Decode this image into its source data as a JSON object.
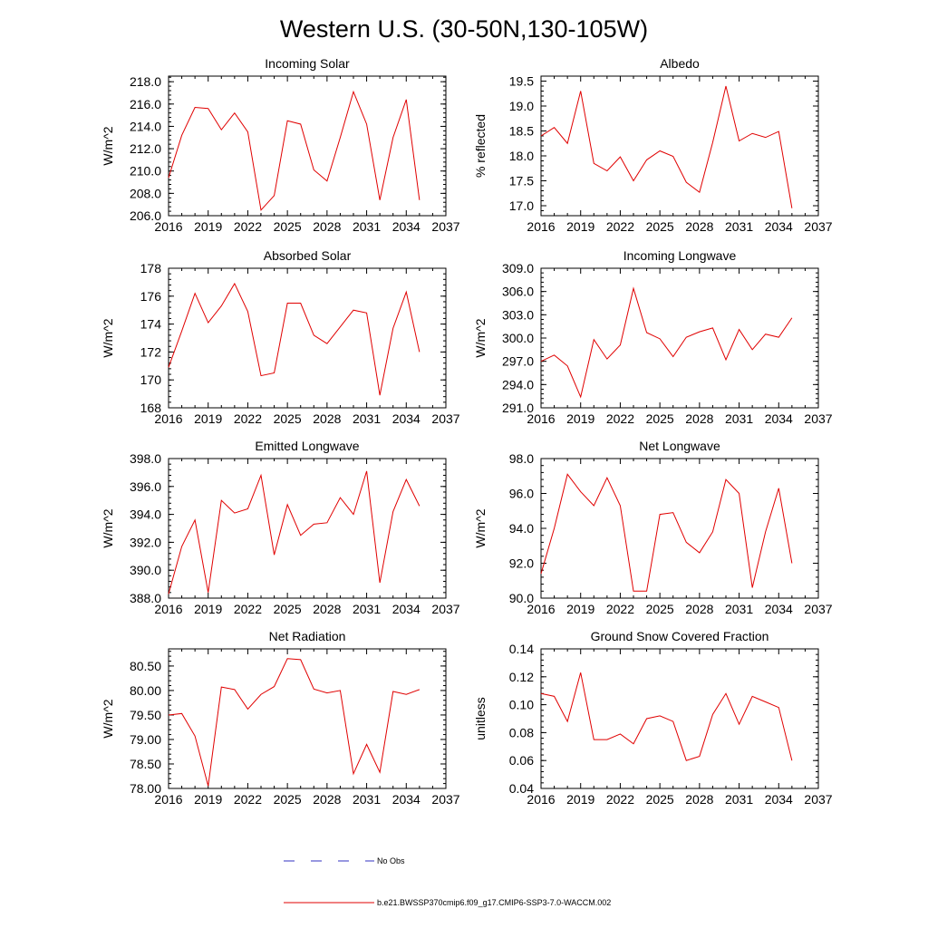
{
  "figure": {
    "title": "Western U.S. (30-50N,130-105W)"
  },
  "legend": {
    "items": [
      {
        "label": "No Obs",
        "color": "#3030c0",
        "style": "dashed"
      },
      {
        "label": "b.e21.BWSSP370cmip6.f09_g17.CMIP6-SSP3-7.0-WACCM.002",
        "color": "#e00000",
        "style": "solid"
      }
    ]
  },
  "chart_data": [
    {
      "type": "line",
      "title": "Incoming Solar",
      "ylabel": "W/m^2",
      "xlim": [
        2016,
        2037
      ],
      "ylim": [
        206,
        218.5
      ],
      "xticks": [
        2016,
        2019,
        2022,
        2025,
        2028,
        2031,
        2034,
        2037
      ],
      "xtick_labels": [
        "2016",
        "2019",
        "2022",
        "2025",
        "2028",
        "2031",
        "2034",
        "2037"
      ],
      "yticks": [
        206,
        208,
        210,
        212,
        214,
        216,
        218
      ],
      "ytick_labels": [
        "206.0",
        "208.0",
        "210.0",
        "212.0",
        "214.0",
        "216.0",
        "218.0"
      ],
      "series": [
        {
          "name": "b.e21.BWSSP370cmip6.f09_g17.CMIP6-SSP3-7.0-WACCM.002",
          "color": "#e00000",
          "x": [
            2016,
            2017,
            2018,
            2019,
            2020,
            2021,
            2022,
            2023,
            2024,
            2025,
            2026,
            2027,
            2028,
            2029,
            2030,
            2031,
            2032,
            2033,
            2034,
            2035
          ],
          "y": [
            209.4,
            213.2,
            215.7,
            215.6,
            213.7,
            215.2,
            213.5,
            206.5,
            207.8,
            214.5,
            214.2,
            210.1,
            209.1,
            213.0,
            217.1,
            214.2,
            207.4,
            213.0,
            216.4,
            207.4
          ]
        }
      ]
    },
    {
      "type": "line",
      "title": "Albedo",
      "ylabel": "% reflected",
      "xlim": [
        2016,
        2037
      ],
      "ylim": [
        16.8,
        19.6
      ],
      "xticks": [
        2016,
        2019,
        2022,
        2025,
        2028,
        2031,
        2034,
        2037
      ],
      "xtick_labels": [
        "2016",
        "2019",
        "2022",
        "2025",
        "2028",
        "2031",
        "2034",
        "2037"
      ],
      "yticks": [
        17.0,
        17.5,
        18.0,
        18.5,
        19.0,
        19.5
      ],
      "ytick_labels": [
        "17.0",
        "17.5",
        "18.0",
        "18.5",
        "19.0",
        "19.5"
      ],
      "series": [
        {
          "name": "b.e21.BWSSP370cmip6.f09_g17.CMIP6-SSP3-7.0-WACCM.002",
          "color": "#e00000",
          "x": [
            2016,
            2017,
            2018,
            2019,
            2020,
            2021,
            2022,
            2023,
            2024,
            2025,
            2026,
            2027,
            2028,
            2029,
            2030,
            2031,
            2032,
            2033,
            2034,
            2035
          ],
          "y": [
            18.4,
            18.57,
            18.25,
            19.3,
            17.85,
            17.7,
            17.98,
            17.5,
            17.92,
            18.1,
            17.99,
            17.47,
            17.27,
            18.27,
            19.4,
            18.3,
            18.45,
            18.37,
            18.49,
            16.95
          ]
        }
      ]
    },
    {
      "type": "line",
      "title": "Absorbed Solar",
      "ylabel": "W/m^2",
      "xlim": [
        2016,
        2037
      ],
      "ylim": [
        168,
        178
      ],
      "xticks": [
        2016,
        2019,
        2022,
        2025,
        2028,
        2031,
        2034,
        2037
      ],
      "xtick_labels": [
        "2016",
        "2019",
        "2022",
        "2025",
        "2028",
        "2031",
        "2034",
        "2037"
      ],
      "yticks": [
        168,
        170,
        172,
        174,
        176,
        178
      ],
      "ytick_labels": [
        "168",
        "170",
        "172",
        "174",
        "176",
        "178"
      ],
      "series": [
        {
          "name": "b.e21.BWSSP370cmip6.f09_g17.CMIP6-SSP3-7.0-WACCM.002",
          "color": "#e00000",
          "x": [
            2016,
            2017,
            2018,
            2019,
            2020,
            2021,
            2022,
            2023,
            2024,
            2025,
            2026,
            2027,
            2028,
            2029,
            2030,
            2031,
            2032,
            2033,
            2034,
            2035
          ],
          "y": [
            170.9,
            173.5,
            176.2,
            174.1,
            175.3,
            176.9,
            174.9,
            170.3,
            170.5,
            175.5,
            175.5,
            173.2,
            172.6,
            173.8,
            175.0,
            174.8,
            168.9,
            173.7,
            176.3,
            172.0
          ]
        }
      ]
    },
    {
      "type": "line",
      "title": "Incoming Longwave",
      "ylabel": "W/m^2",
      "xlim": [
        2016,
        2037
      ],
      "ylim": [
        291,
        309
      ],
      "xticks": [
        2016,
        2019,
        2022,
        2025,
        2028,
        2031,
        2034,
        2037
      ],
      "xtick_labels": [
        "2016",
        "2019",
        "2022",
        "2025",
        "2028",
        "2031",
        "2034",
        "2037"
      ],
      "yticks": [
        291,
        294,
        297,
        300,
        303,
        306,
        309
      ],
      "ytick_labels": [
        "291.0",
        "294.0",
        "297.0",
        "300.0",
        "303.0",
        "306.0",
        "309.0"
      ],
      "series": [
        {
          "name": "b.e21.BWSSP370cmip6.f09_g17.CMIP6-SSP3-7.0-WACCM.002",
          "color": "#e00000",
          "x": [
            2016,
            2017,
            2018,
            2019,
            2020,
            2021,
            2022,
            2023,
            2024,
            2025,
            2026,
            2027,
            2028,
            2029,
            2030,
            2031,
            2032,
            2033,
            2034,
            2035
          ],
          "y": [
            297.0,
            297.8,
            296.4,
            292.4,
            299.8,
            297.3,
            299.1,
            306.4,
            300.7,
            299.9,
            297.6,
            300.1,
            300.8,
            301.3,
            297.2,
            301.1,
            298.5,
            300.5,
            300.1,
            302.6
          ]
        }
      ]
    },
    {
      "type": "line",
      "title": "Emitted Longwave",
      "ylabel": "W/m^2",
      "xlim": [
        2016,
        2037
      ],
      "ylim": [
        388,
        398
      ],
      "xticks": [
        2016,
        2019,
        2022,
        2025,
        2028,
        2031,
        2034,
        2037
      ],
      "xtick_labels": [
        "2016",
        "2019",
        "2022",
        "2025",
        "2028",
        "2031",
        "2034",
        "2037"
      ],
      "yticks": [
        388,
        390,
        392,
        394,
        396,
        398
      ],
      "ytick_labels": [
        "388.0",
        "390.0",
        "392.0",
        "394.0",
        "396.0",
        "398.0"
      ],
      "series": [
        {
          "name": "b.e21.BWSSP370cmip6.f09_g17.CMIP6-SSP3-7.0-WACCM.002",
          "color": "#e00000",
          "x": [
            2016,
            2017,
            2018,
            2019,
            2020,
            2021,
            2022,
            2023,
            2024,
            2025,
            2026,
            2027,
            2028,
            2029,
            2030,
            2031,
            2032,
            2033,
            2034,
            2035
          ],
          "y": [
            388.3,
            391.7,
            393.6,
            388.4,
            395.0,
            394.1,
            394.4,
            396.8,
            391.1,
            394.7,
            392.5,
            393.3,
            393.4,
            395.2,
            394.0,
            397.1,
            389.1,
            394.2,
            396.5,
            394.6
          ]
        }
      ]
    },
    {
      "type": "line",
      "title": "Net Longwave",
      "ylabel": "W/m^2",
      "xlim": [
        2016,
        2037
      ],
      "ylim": [
        90,
        98
      ],
      "xticks": [
        2016,
        2019,
        2022,
        2025,
        2028,
        2031,
        2034,
        2037
      ],
      "xtick_labels": [
        "2016",
        "2019",
        "2022",
        "2025",
        "2028",
        "2031",
        "2034",
        "2037"
      ],
      "yticks": [
        90,
        92,
        94,
        96,
        98
      ],
      "ytick_labels": [
        "90.0",
        "92.0",
        "94.0",
        "96.0",
        "98.0"
      ],
      "series": [
        {
          "name": "b.e21.BWSSP370cmip6.f09_g17.CMIP6-SSP3-7.0-WACCM.002",
          "color": "#e00000",
          "x": [
            2016,
            2017,
            2018,
            2019,
            2020,
            2021,
            2022,
            2023,
            2024,
            2025,
            2026,
            2027,
            2028,
            2029,
            2030,
            2031,
            2032,
            2033,
            2034,
            2035
          ],
          "y": [
            91.4,
            94.0,
            97.1,
            96.1,
            95.3,
            96.9,
            95.3,
            90.4,
            90.4,
            94.8,
            94.9,
            93.2,
            92.6,
            93.8,
            96.8,
            96.0,
            90.6,
            93.8,
            96.3,
            92.0
          ]
        }
      ]
    },
    {
      "type": "line",
      "title": "Net Radiation",
      "ylabel": "W/m^2",
      "xlim": [
        2016,
        2037
      ],
      "ylim": [
        78,
        80.85
      ],
      "xticks": [
        2016,
        2019,
        2022,
        2025,
        2028,
        2031,
        2034,
        2037
      ],
      "xtick_labels": [
        "2016",
        "2019",
        "2022",
        "2025",
        "2028",
        "2031",
        "2034",
        "2037"
      ],
      "yticks": [
        78.0,
        78.5,
        79.0,
        79.5,
        80.0,
        80.5
      ],
      "ytick_labels": [
        "78.00",
        "78.50",
        "79.00",
        "79.50",
        "80.00",
        "80.50"
      ],
      "series": [
        {
          "name": "b.e21.BWSSP370cmip6.f09_g17.CMIP6-SSP3-7.0-WACCM.002",
          "color": "#e00000",
          "x": [
            2016,
            2017,
            2018,
            2019,
            2020,
            2021,
            2022,
            2023,
            2024,
            2025,
            2026,
            2027,
            2028,
            2029,
            2030,
            2031,
            2032,
            2033,
            2034,
            2035
          ],
          "y": [
            79.5,
            79.53,
            79.07,
            78.05,
            80.07,
            80.02,
            79.62,
            79.92,
            80.08,
            80.65,
            80.63,
            80.03,
            79.95,
            80.0,
            78.3,
            78.9,
            78.33,
            79.98,
            79.92,
            80.02
          ]
        }
      ]
    },
    {
      "type": "line",
      "title": "Ground Snow Covered Fraction",
      "ylabel": "unitless",
      "xlim": [
        2016,
        2037
      ],
      "ylim": [
        0.04,
        0.14
      ],
      "xticks": [
        2016,
        2019,
        2022,
        2025,
        2028,
        2031,
        2034,
        2037
      ],
      "xtick_labels": [
        "2016",
        "2019",
        "2022",
        "2025",
        "2028",
        "2031",
        "2034",
        "2037"
      ],
      "yticks": [
        0.04,
        0.06,
        0.08,
        0.1,
        0.12,
        0.14
      ],
      "ytick_labels": [
        "0.04",
        "0.06",
        "0.08",
        "0.10",
        "0.12",
        "0.14"
      ],
      "series": [
        {
          "name": "b.e21.BWSSP370cmip6.f09_g17.CMIP6-SSP3-7.0-WACCM.002",
          "color": "#e00000",
          "x": [
            2016,
            2017,
            2018,
            2019,
            2020,
            2021,
            2022,
            2023,
            2024,
            2025,
            2026,
            2027,
            2028,
            2029,
            2030,
            2031,
            2032,
            2033,
            2034,
            2035
          ],
          "y": [
            0.108,
            0.106,
            0.088,
            0.123,
            0.075,
            0.075,
            0.079,
            0.072,
            0.09,
            0.092,
            0.088,
            0.06,
            0.063,
            0.093,
            0.108,
            0.086,
            0.106,
            0.102,
            0.098,
            0.06
          ]
        }
      ]
    }
  ]
}
